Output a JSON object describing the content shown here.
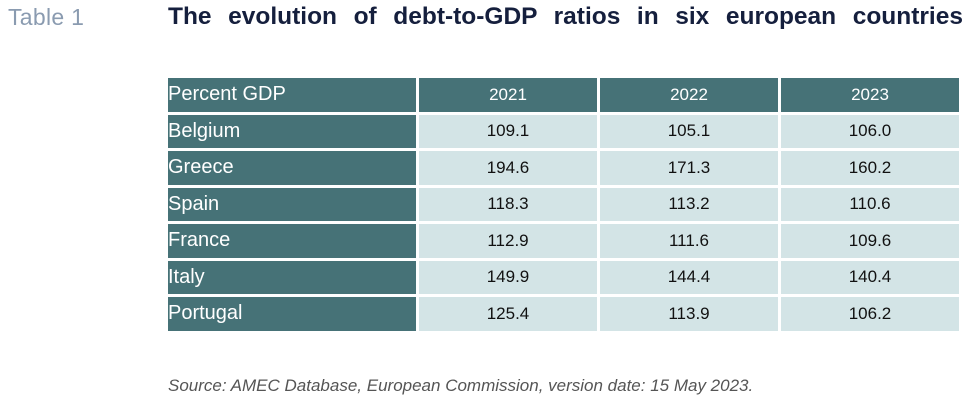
{
  "table_label": "Table 1",
  "title": "The evolution of debt-to-GDP ratios in six european countries",
  "table": {
    "header": [
      "Percent GDP",
      "2021",
      "2022",
      "2023"
    ],
    "rows": [
      {
        "country": "Belgium",
        "values": [
          "109.1",
          "105.1",
          "106.0"
        ]
      },
      {
        "country": "Greece",
        "values": [
          "194.6",
          "171.3",
          "160.2"
        ]
      },
      {
        "country": "Spain",
        "values": [
          "118.3",
          "113.2",
          "110.6"
        ]
      },
      {
        "country": "France",
        "values": [
          "112.9",
          "111.6",
          "109.6"
        ]
      },
      {
        "country": "Italy",
        "values": [
          "149.9",
          "144.4",
          "140.4"
        ]
      },
      {
        "country": "Portugal",
        "values": [
          "125.4",
          "113.9",
          "106.2"
        ]
      }
    ]
  },
  "source": "Source: AMEC Database, European Commission, version date: 15 May 2023.",
  "colors": {
    "header_bg": "#467277",
    "cell_bg": "#d3e4e6",
    "title": "#151f3d",
    "label": "#8a9bb0"
  }
}
